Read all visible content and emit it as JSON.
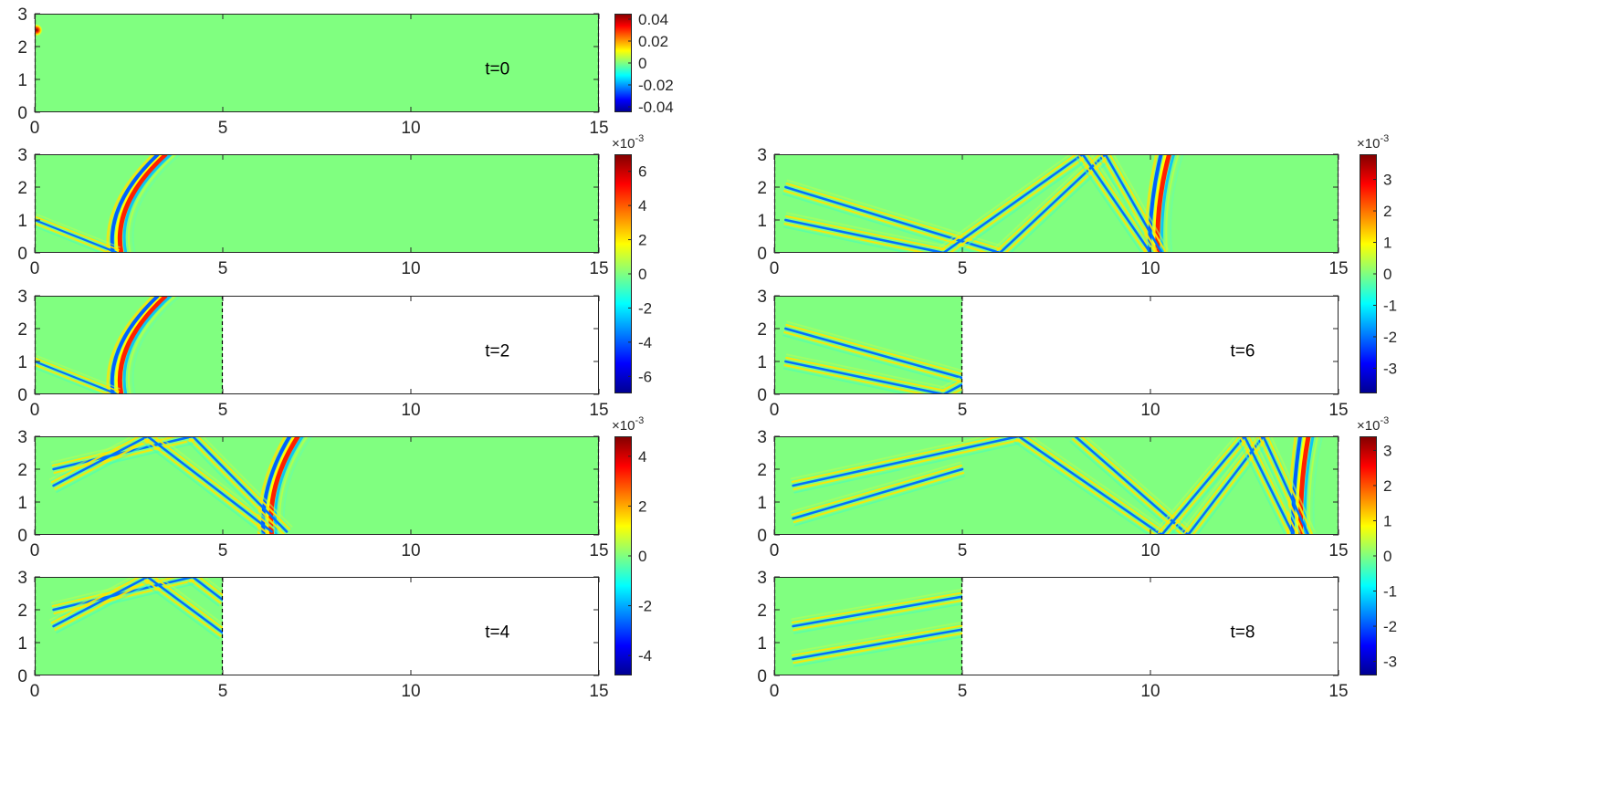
{
  "colors": {
    "background_field": "#80ff80",
    "axis": "#262626",
    "colormap": "jet"
  },
  "chart_data": [
    {
      "id": "p1",
      "type": "heatmap",
      "annotation": "t=0",
      "xlim": [
        0,
        15
      ],
      "ylim": [
        0,
        3
      ],
      "xticks": [
        "0",
        "5",
        "10",
        "15"
      ],
      "yticks": [
        "0",
        "1",
        "2",
        "3"
      ],
      "data_extent_x": 15,
      "features": [
        {
          "kind": "source",
          "x": 0.05,
          "y": 2.5,
          "amp": 0.04
        }
      ],
      "colorbar": {
        "ticks": [
          "0.04",
          "0.02",
          "0",
          "-0.02",
          "-0.04"
        ],
        "limit": 0.045,
        "exponent": ""
      }
    },
    {
      "id": "p2",
      "type": "heatmap",
      "annotation": "",
      "xlim": [
        0,
        15
      ],
      "ylim": [
        0,
        3
      ],
      "xticks": [
        "0",
        "5",
        "10",
        "15"
      ],
      "yticks": [
        "0",
        "1",
        "2",
        "3"
      ],
      "data_extent_x": 15,
      "features": [
        {
          "kind": "front",
          "x_top": 3.5,
          "x_bot": 2.3
        },
        {
          "kind": "reflect",
          "x0": 0.0,
          "y0": 1.0,
          "x1": 2.2,
          "y1": 0.0
        }
      ],
      "colorbar": {
        "ticks": [
          "6",
          "4",
          "2",
          "0",
          "-2",
          "-4",
          "-6"
        ],
        "limit": 7,
        "exponent": "×10",
        "exponent_power": "-3"
      }
    },
    {
      "id": "p3",
      "type": "heatmap",
      "annotation": "t=2",
      "xlim": [
        0,
        15
      ],
      "ylim": [
        0,
        3
      ],
      "xticks": [
        "0",
        "5",
        "10",
        "15"
      ],
      "yticks": [
        "0",
        "1",
        "2",
        "3"
      ],
      "data_extent_x": 5,
      "features": [
        {
          "kind": "front",
          "x_top": 3.5,
          "x_bot": 2.3
        },
        {
          "kind": "reflect",
          "x0": 0.0,
          "y0": 1.0,
          "x1": 2.2,
          "y1": 0.0
        }
      ]
    },
    {
      "id": "p4",
      "type": "heatmap",
      "annotation": "",
      "xlim": [
        0,
        15
      ],
      "ylim": [
        0,
        3
      ],
      "xticks": [
        "0",
        "5",
        "10",
        "15"
      ],
      "yticks": [
        "0",
        "1",
        "2",
        "3"
      ],
      "data_extent_x": 15,
      "features": [
        {
          "kind": "front",
          "x_top": 7.0,
          "x_bot": 6.3
        },
        {
          "kind": "band",
          "x0": 0.5,
          "y0": 2.0,
          "x1": 4.2,
          "y1": 3.0
        },
        {
          "kind": "band",
          "x0": 0.5,
          "y0": 1.5,
          "x1": 3.0,
          "y1": 3.0
        },
        {
          "kind": "band",
          "x0": 3.0,
          "y0": 3.0,
          "x1": 6.3,
          "y1": 0.1
        },
        {
          "kind": "band",
          "x0": 4.2,
          "y0": 3.0,
          "x1": 6.7,
          "y1": 0.1
        }
      ],
      "colorbar": {
        "ticks": [
          "4",
          "2",
          "0",
          "-2",
          "-4"
        ],
        "limit": 4.8,
        "exponent": "×10",
        "exponent_power": "-3"
      }
    },
    {
      "id": "p5",
      "type": "heatmap",
      "annotation": "t=4",
      "xlim": [
        0,
        15
      ],
      "ylim": [
        0,
        3
      ],
      "xticks": [
        "0",
        "5",
        "10",
        "15"
      ],
      "yticks": [
        "0",
        "1",
        "2",
        "3"
      ],
      "data_extent_x": 5,
      "features": [
        {
          "kind": "band",
          "x0": 0.5,
          "y0": 2.0,
          "x1": 4.2,
          "y1": 3.0
        },
        {
          "kind": "band",
          "x0": 0.5,
          "y0": 1.5,
          "x1": 3.0,
          "y1": 3.0
        },
        {
          "kind": "band",
          "x0": 3.0,
          "y0": 3.0,
          "x1": 5.0,
          "y1": 1.3
        },
        {
          "kind": "band",
          "x0": 4.2,
          "y0": 3.0,
          "x1": 5.0,
          "y1": 2.3
        }
      ]
    },
    {
      "id": "p6",
      "type": "heatmap",
      "annotation": "",
      "xlim": [
        0,
        15
      ],
      "ylim": [
        0,
        3
      ],
      "xticks": [
        "0",
        "5",
        "10",
        "15"
      ],
      "yticks": [
        "0",
        "1",
        "2",
        "3"
      ],
      "data_extent_x": 15,
      "features": [
        {
          "kind": "front",
          "x_top": 10.5,
          "x_bot": 10.2
        },
        {
          "kind": "band",
          "x0": 0.3,
          "y0": 2.0,
          "x1": 6.0,
          "y1": 0.0
        },
        {
          "kind": "band",
          "x0": 0.3,
          "y0": 1.0,
          "x1": 4.5,
          "y1": 0.0
        },
        {
          "kind": "band",
          "x0": 4.5,
          "y0": 0.0,
          "x1": 8.2,
          "y1": 3.0
        },
        {
          "kind": "band",
          "x0": 6.0,
          "y0": 0.0,
          "x1": 8.8,
          "y1": 3.0
        },
        {
          "kind": "band",
          "x0": 8.2,
          "y0": 3.0,
          "x1": 10.0,
          "y1": 0.0
        },
        {
          "kind": "band",
          "x0": 8.8,
          "y0": 3.0,
          "x1": 10.3,
          "y1": 0.0
        }
      ],
      "colorbar": {
        "ticks": [
          "3",
          "2",
          "1",
          "0",
          "-1",
          "-2",
          "-3"
        ],
        "limit": 3.8,
        "exponent": "×10",
        "exponent_power": "-3"
      }
    },
    {
      "id": "p7",
      "type": "heatmap",
      "annotation": "t=6",
      "xlim": [
        0,
        15
      ],
      "ylim": [
        0,
        3
      ],
      "xticks": [
        "0",
        "5",
        "10",
        "15"
      ],
      "yticks": [
        "0",
        "1",
        "2",
        "3"
      ],
      "data_extent_x": 5,
      "features": [
        {
          "kind": "band",
          "x0": 0.3,
          "y0": 2.0,
          "x1": 5.0,
          "y1": 0.5
        },
        {
          "kind": "band",
          "x0": 0.3,
          "y0": 1.0,
          "x1": 4.5,
          "y1": 0.0
        },
        {
          "kind": "band",
          "x0": 4.5,
          "y0": 0.0,
          "x1": 5.0,
          "y1": 0.3
        }
      ]
    },
    {
      "id": "p8",
      "type": "heatmap",
      "annotation": "",
      "xlim": [
        0,
        15
      ],
      "ylim": [
        0,
        3
      ],
      "xticks": [
        "0",
        "5",
        "10",
        "15"
      ],
      "yticks": [
        "0",
        "1",
        "2",
        "3"
      ],
      "data_extent_x": 15,
      "features": [
        {
          "kind": "front",
          "x_top": 14.2,
          "x_bot": 14.0
        },
        {
          "kind": "band",
          "x0": 0.5,
          "y0": 1.5,
          "x1": 6.5,
          "y1": 3.0
        },
        {
          "kind": "band",
          "x0": 0.5,
          "y0": 0.5,
          "x1": 5.0,
          "y1": 2.0
        },
        {
          "kind": "band",
          "x0": 6.5,
          "y0": 3.0,
          "x1": 10.3,
          "y1": 0.0
        },
        {
          "kind": "band",
          "x0": 8.0,
          "y0": 3.0,
          "x1": 11.0,
          "y1": 0.0
        },
        {
          "kind": "band",
          "x0": 10.3,
          "y0": 0.0,
          "x1": 12.5,
          "y1": 3.0
        },
        {
          "kind": "band",
          "x0": 11.0,
          "y0": 0.0,
          "x1": 13.0,
          "y1": 3.0
        },
        {
          "kind": "band",
          "x0": 12.5,
          "y0": 3.0,
          "x1": 13.8,
          "y1": 0.0
        },
        {
          "kind": "band",
          "x0": 13.0,
          "y0": 3.0,
          "x1": 14.2,
          "y1": 0.0
        }
      ],
      "colorbar": {
        "ticks": [
          "3",
          "2",
          "1",
          "0",
          "-1",
          "-2",
          "-3"
        ],
        "limit": 3.4,
        "exponent": "×10",
        "exponent_power": "-3"
      }
    },
    {
      "id": "p9",
      "type": "heatmap",
      "annotation": "t=8",
      "xlim": [
        0,
        15
      ],
      "ylim": [
        0,
        3
      ],
      "xticks": [
        "0",
        "5",
        "10",
        "15"
      ],
      "yticks": [
        "0",
        "1",
        "2",
        "3"
      ],
      "data_extent_x": 5,
      "features": [
        {
          "kind": "band",
          "x0": 0.5,
          "y0": 1.5,
          "x1": 5.0,
          "y1": 2.4
        },
        {
          "kind": "band",
          "x0": 0.5,
          "y0": 0.5,
          "x1": 5.0,
          "y1": 1.4
        }
      ]
    }
  ]
}
